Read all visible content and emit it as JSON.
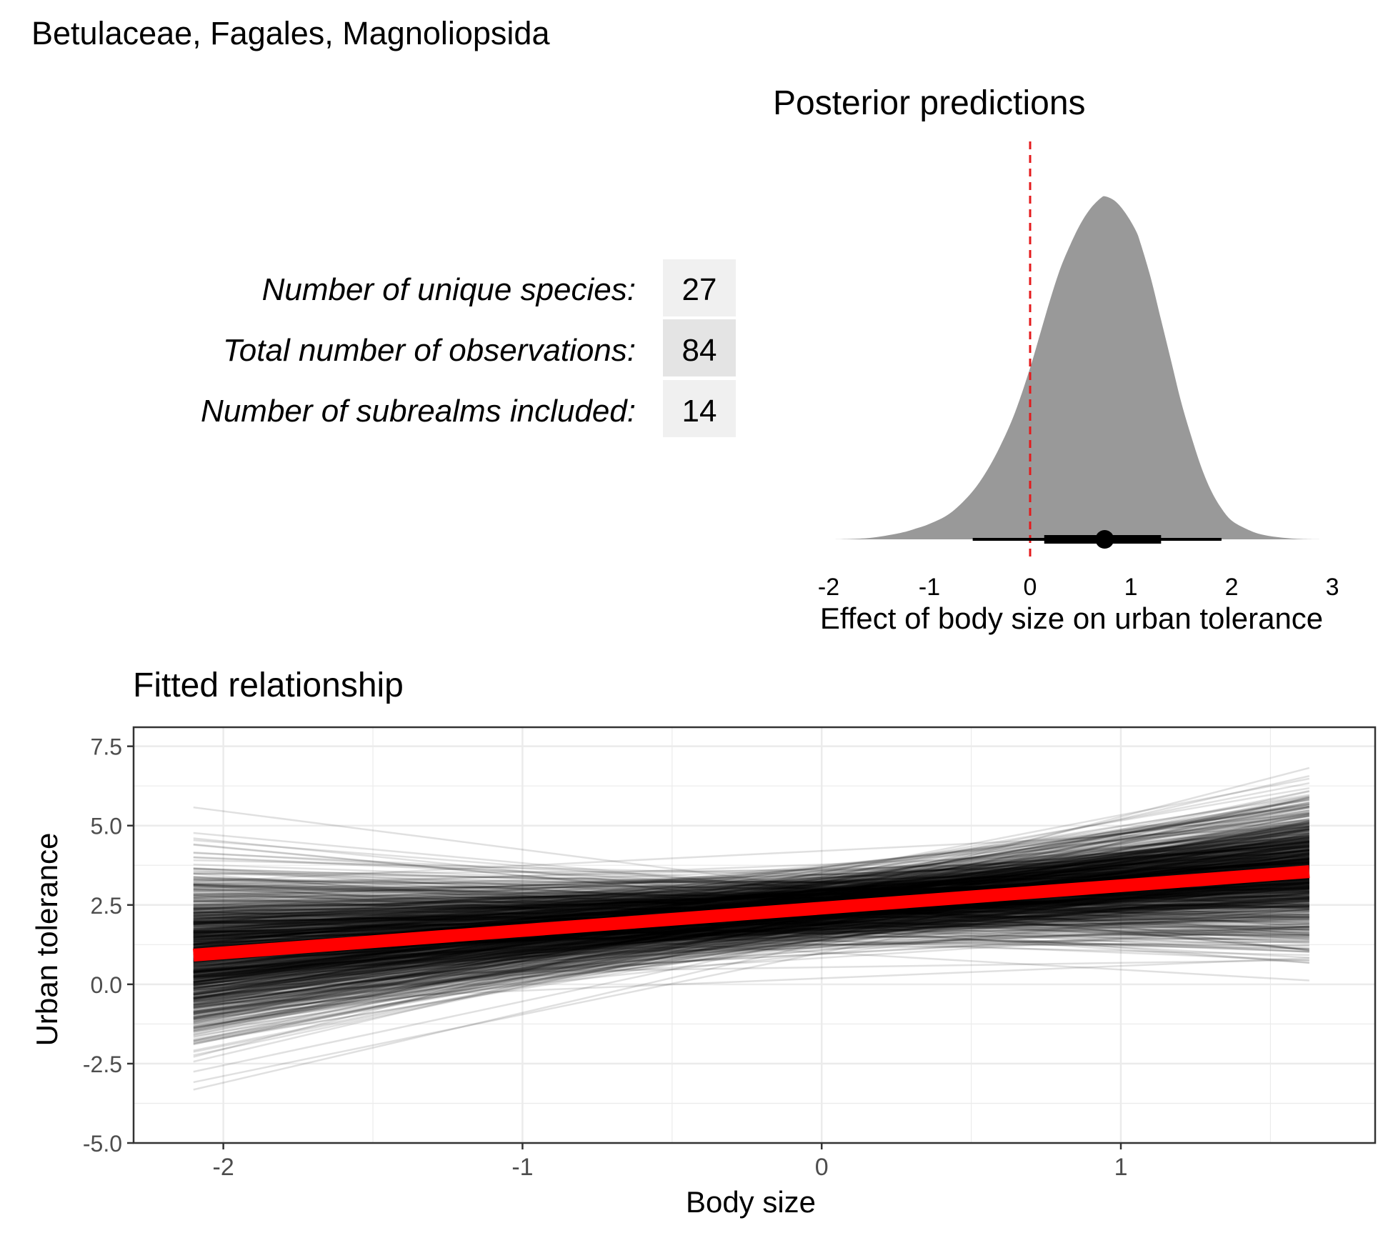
{
  "figure_title": "Betulaceae, Fagales, Magnoliopsida",
  "summary_table": {
    "rows": [
      {
        "label": "Number of unique species:",
        "value": "27"
      },
      {
        "label": "Total number of observations:",
        "value": "84"
      },
      {
        "label": "Number of subrealms included:",
        "value": "14"
      }
    ]
  },
  "colors": {
    "density_fill": "#999999",
    "reference_line": "#e41a1c",
    "fit_line": "#ff0000",
    "draw_line": "#000000",
    "table_cell": "#f0f0f0",
    "table_cell_alt": "#e4e4e4",
    "grid": "#ebebeb"
  },
  "chart_data": [
    {
      "type": "area",
      "title": "Posterior predictions",
      "xlabel": "Effect of body size on urban tolerance",
      "ylabel": "",
      "xlim": [
        -2.0,
        2.95
      ],
      "xticks": [
        "-2",
        "-1",
        "0",
        "1",
        "2",
        "3"
      ],
      "reference_line_x": 0,
      "density": {
        "x": [
          -1.95,
          -1.6,
          -1.3,
          -1.15,
          -1.0,
          -0.8,
          -0.6,
          -0.45,
          -0.3,
          -0.15,
          0.0,
          0.1,
          0.2,
          0.3,
          0.4,
          0.5,
          0.6,
          0.7,
          0.75,
          0.85,
          0.95,
          1.05,
          1.1,
          1.2,
          1.3,
          1.4,
          1.5,
          1.6,
          1.7,
          1.8,
          1.9,
          2.0,
          2.15,
          2.3,
          2.5,
          2.7,
          2.9
        ],
        "y": [
          0.0,
          0.004,
          0.018,
          0.03,
          0.045,
          0.075,
          0.13,
          0.19,
          0.27,
          0.37,
          0.5,
          0.6,
          0.7,
          0.79,
          0.86,
          0.92,
          0.965,
          0.995,
          1.0,
          0.985,
          0.95,
          0.9,
          0.86,
          0.76,
          0.64,
          0.52,
          0.4,
          0.3,
          0.21,
          0.14,
          0.09,
          0.055,
          0.03,
          0.014,
          0.005,
          0.001,
          0.0
        ]
      },
      "point_interval": {
        "point": 0.74,
        "inner_interval": [
          0.14,
          1.3
        ],
        "outer_interval": [
          -0.57,
          1.9
        ]
      }
    },
    {
      "type": "line",
      "title": "Fitted relationship",
      "xlabel": "Body size",
      "ylabel": "Urban tolerance",
      "xlim": [
        -2.3,
        1.85
      ],
      "ylim": [
        -5.0,
        8.1
      ],
      "xticks": [
        "-2",
        "-1",
        "0",
        "1"
      ],
      "yticks": [
        "-5.0",
        "-2.5",
        "0.0",
        "2.5",
        "5.0",
        "7.5"
      ],
      "x_range": [
        -2.1,
        1.63
      ],
      "fit": {
        "x": [
          -2.1,
          1.63
        ],
        "y": [
          0.92,
          3.55
        ]
      },
      "posterior_draws": {
        "count": 1000,
        "line_opacity": 0.12
      }
    }
  ]
}
